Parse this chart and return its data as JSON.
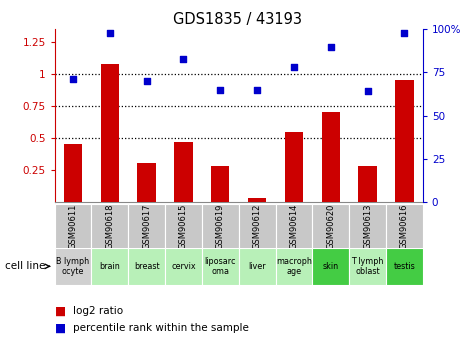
{
  "title": "GDS1835 / 43193",
  "categories": [
    "GSM90611",
    "GSM90618",
    "GSM90617",
    "GSM90615",
    "GSM90619",
    "GSM90612",
    "GSM90614",
    "GSM90620",
    "GSM90613",
    "GSM90616"
  ],
  "cell_lines": [
    "B lymph\nocyte",
    "brain",
    "breast",
    "cervix",
    "liposarc\noma",
    "liver",
    "macroph\nage",
    "skin",
    "T lymph\noblast",
    "testis"
  ],
  "cell_line_colors": [
    "#d0d0d0",
    "#b8f0b8",
    "#b8f0b8",
    "#b8f0b8",
    "#b8f0b8",
    "#b8f0b8",
    "#b8f0b8",
    "#44cc44",
    "#b8f0b8",
    "#44cc44"
  ],
  "log2_ratio": [
    0.45,
    1.08,
    0.3,
    0.47,
    0.28,
    0.03,
    0.55,
    0.7,
    0.28,
    0.95
  ],
  "percentile_rank": [
    71,
    98,
    70,
    83,
    65,
    65,
    78,
    90,
    64,
    98
  ],
  "bar_color": "#cc0000",
  "dot_color": "#0000cc",
  "ylim_left": [
    0.0,
    1.35
  ],
  "ylim_right": [
    0,
    100
  ],
  "yticks_left": [
    0.25,
    0.5,
    0.75,
    1.0,
    1.25
  ],
  "yticks_right": [
    0,
    25,
    50,
    75,
    100
  ],
  "ytick_labels_left": [
    "0.25",
    "0.5",
    "0.75",
    "1",
    "1.25"
  ],
  "ytick_labels_right": [
    "0",
    "25",
    "50",
    "75",
    "100%"
  ],
  "hlines": [
    0.5,
    0.75,
    1.0
  ],
  "legend_bar_label": "log2 ratio",
  "legend_dot_label": "percentile rank within the sample",
  "cell_line_label": "cell line",
  "gsm_bg_color": "#c8c8c8",
  "plot_bg": "#ffffff"
}
